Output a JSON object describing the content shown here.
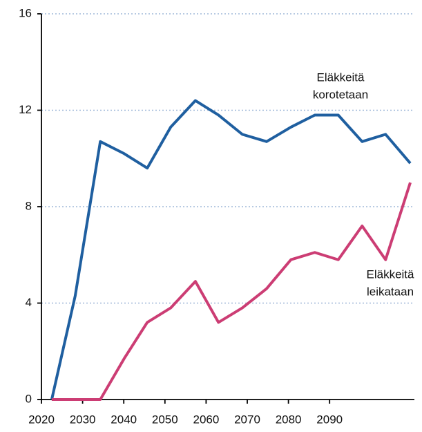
{
  "chart_data": {
    "type": "line",
    "x": [
      2022.5,
      2028.2,
      2034.3,
      2040.1,
      2045.7,
      2051.4,
      2057.4,
      2063.0,
      2068.8,
      2074.7,
      2080.6,
      2086.4,
      2092.1,
      2097.9,
      2103.6,
      2109.6
    ],
    "series": [
      {
        "name": "Eläkkeitä korotetaan",
        "color": "#1f5fa0",
        "values": [
          0,
          4.3,
          10.7,
          10.2,
          9.6,
          11.3,
          12.4,
          11.8,
          11.0,
          10.7,
          11.3,
          11.8,
          11.8,
          10.7,
          11.0,
          9.8
        ]
      },
      {
        "name": "Eläkkeitä leikataan",
        "color": "#cc3d74",
        "values": [
          0,
          0,
          0,
          1.7,
          3.2,
          3.8,
          4.9,
          3.2,
          3.8,
          4.6,
          5.8,
          6.1,
          5.8,
          7.2,
          5.8,
          9.0
        ]
      }
    ],
    "annotations": [
      [
        "Eläkkeitä",
        "korotetaan"
      ],
      [
        "Eläkkeitä",
        "leikataan"
      ]
    ],
    "xlim": [
      2020,
      2110.6
    ],
    "xticks": [
      2020,
      2030,
      2040,
      2050,
      2060,
      2070,
      2080,
      2090
    ],
    "ylim": [
      0,
      16
    ],
    "yticks": [
      0,
      4,
      8,
      12,
      16
    ],
    "grid": true
  }
}
